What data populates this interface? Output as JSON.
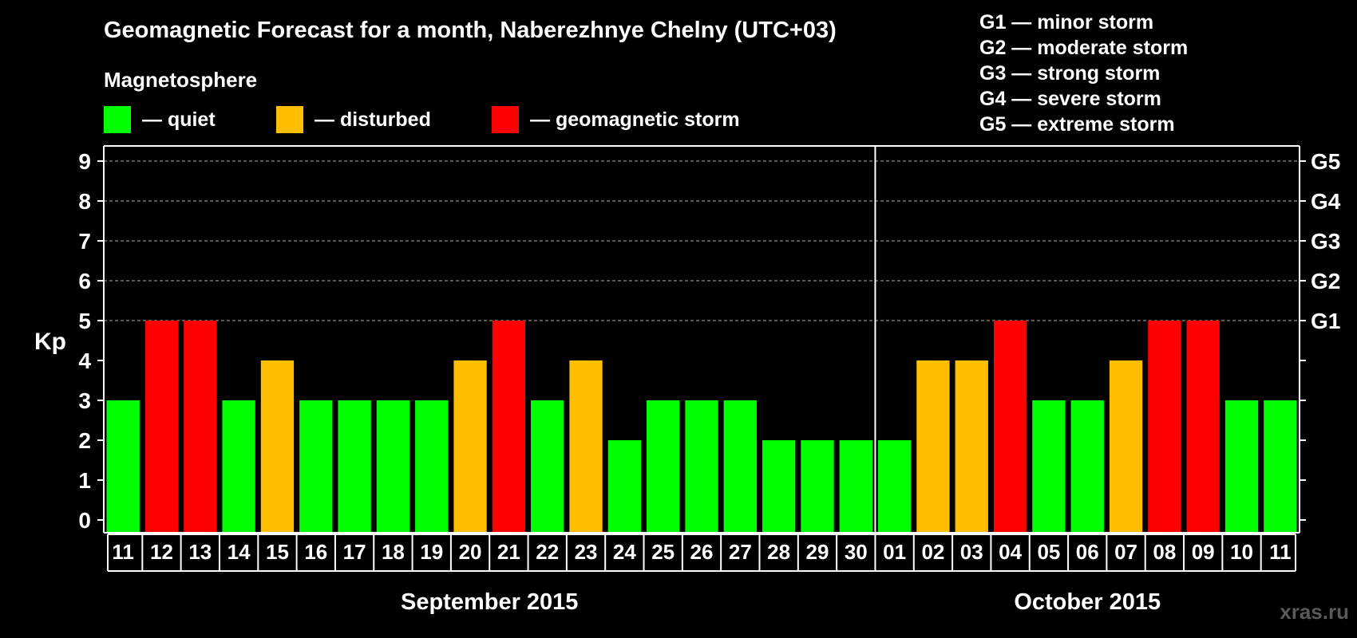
{
  "chart_data": {
    "type": "bar",
    "title": "Geomagnetic Forecast for a month, Naberezhnye Chelny (UTC+03)",
    "subtitle": "Magnetosphere",
    "ylabel": "Kp",
    "ylim": [
      0,
      9
    ],
    "y_ticks": [
      "0",
      "1",
      "2",
      "3",
      "4",
      "5",
      "6",
      "7",
      "8",
      "9"
    ],
    "right_axis_ticks": [
      {
        "kp": 5,
        "label": "G1"
      },
      {
        "kp": 6,
        "label": "G2"
      },
      {
        "kp": 7,
        "label": "G3"
      },
      {
        "kp": 8,
        "label": "G4"
      },
      {
        "kp": 9,
        "label": "G5"
      }
    ],
    "gridlines": "dashed, at Kp 5 through 9",
    "categories": [
      "11",
      "12",
      "13",
      "14",
      "15",
      "16",
      "17",
      "18",
      "19",
      "20",
      "21",
      "22",
      "23",
      "24",
      "25",
      "26",
      "27",
      "28",
      "29",
      "30",
      "01",
      "02",
      "03",
      "04",
      "05",
      "06",
      "07",
      "08",
      "09",
      "10",
      "11"
    ],
    "values": [
      3,
      5,
      5,
      3,
      4,
      3,
      3,
      3,
      3,
      4,
      5,
      3,
      4,
      2,
      3,
      3,
      3,
      2,
      2,
      2,
      2,
      4,
      4,
      5,
      3,
      3,
      4,
      5,
      5,
      3,
      3
    ],
    "months": [
      {
        "label": "September 2015",
        "start_index": 0,
        "count": 20
      },
      {
        "label": "October 2015",
        "start_index": 20,
        "count": 11
      }
    ],
    "legend": {
      "placement": "top-left",
      "items": [
        {
          "label": "— quiet",
          "color": "#00ff00",
          "kp_max": 3
        },
        {
          "label": "— disturbed",
          "color": "#ffbf00",
          "kp_min": 4,
          "kp_max": 4
        },
        {
          "label": "— geomagnetic storm",
          "color": "#ff0000",
          "kp_min": 5
        }
      ]
    },
    "storm_scale": [
      "G1 — minor storm",
      "G2 — moderate storm",
      "G3 — strong storm",
      "G4 — severe storm",
      "G5 — extreme storm"
    ]
  },
  "watermark": "xras.ru"
}
